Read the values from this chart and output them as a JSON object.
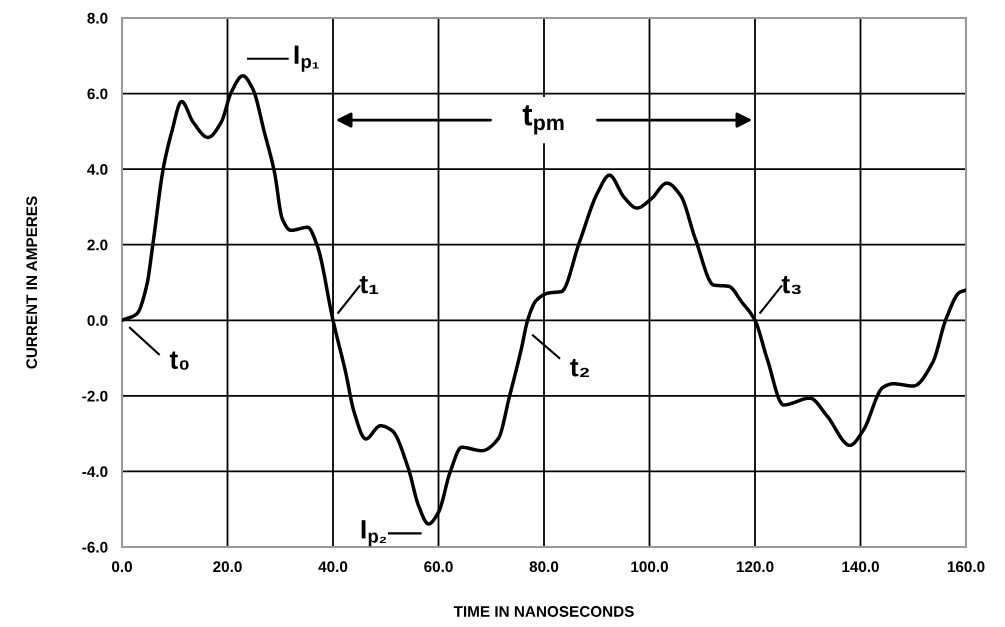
{
  "chart_data": {
    "type": "line",
    "xlabel": "TIME IN NANOSECONDS",
    "ylabel": "CURRENT IN AMPERES",
    "x": [
      0,
      2.8,
      4.7,
      5.9,
      7.8,
      9.4,
      11.3,
      13.5,
      16.3,
      18.8,
      20.7,
      22.9,
      24.8,
      27,
      28.9,
      30.4,
      32,
      35.2,
      37,
      40,
      42.4,
      44,
      46.2,
      49,
      51.2,
      54.3,
      56.2,
      58.1,
      60,
      62.2,
      64.4,
      68.2,
      71.3,
      73.5,
      75.7,
      76.9,
      78.5,
      80.8,
      83.3,
      86.7,
      90.2,
      92.4,
      95.2,
      97.6,
      100.3,
      103.3,
      105.9,
      108.7,
      112.2,
      115,
      117.5,
      120,
      122.3,
      125.4,
      130.4,
      133.6,
      138,
      140.5,
      144.3,
      146.2,
      150,
      153.7,
      156.2,
      158.8,
      160
    ],
    "series": [
      {
        "color": "#000000",
        "values": [
          0,
          0.17,
          0.93,
          2.06,
          4.0,
          4.97,
          5.79,
          5.24,
          4.84,
          5.24,
          6.03,
          6.47,
          6.12,
          4.97,
          3.92,
          2.68,
          2.38,
          2.46,
          1.98,
          0,
          -1.38,
          -2.43,
          -3.14,
          -2.79,
          -2.92,
          -3.93,
          -4.9,
          -5.39,
          -5.08,
          -4.02,
          -3.36,
          -3.45,
          -3.14,
          -1.99,
          -0.76,
          0,
          0.52,
          0.72,
          0.76,
          2.06,
          3.39,
          3.84,
          3.25,
          2.97,
          3.21,
          3.63,
          3.3,
          2.15,
          0.93,
          0.9,
          0.48,
          0,
          -1.02,
          -2.24,
          -2.06,
          -2.52,
          -3.31,
          -2.92,
          -1.77,
          -1.68,
          -1.74,
          -1.11,
          0.03,
          0.74,
          0.8
        ]
      }
    ],
    "xlim": [
      0,
      160
    ],
    "ylim": [
      -6,
      8
    ],
    "xticks": [
      {
        "value": 0,
        "label": "0.0"
      },
      {
        "value": 20,
        "label": "20.0"
      },
      {
        "value": 40,
        "label": "40.0"
      },
      {
        "value": 60,
        "label": "60.0"
      },
      {
        "value": 80,
        "label": "80.0"
      },
      {
        "value": 100,
        "label": "100.0"
      },
      {
        "value": 120,
        "label": "120.0"
      },
      {
        "value": 140,
        "label": "140.0"
      },
      {
        "value": 160,
        "label": "160.0"
      }
    ],
    "yticks": [
      {
        "value": -6,
        "label": "-6.0"
      },
      {
        "value": -4,
        "label": "-4.0"
      },
      {
        "value": -2,
        "label": "-2.0"
      },
      {
        "value": 0,
        "label": "0.0"
      },
      {
        "value": 2,
        "label": "2.0"
      },
      {
        "value": 4,
        "label": "4.0"
      },
      {
        "value": 6,
        "label": "6.0"
      },
      {
        "value": 8,
        "label": "8.0"
      }
    ],
    "grid": true,
    "marker": "none",
    "line_style": "solid",
    "annotations": [
      {
        "text": "t₀",
        "x": 0,
        "y": 0
      },
      {
        "text": "t₁",
        "x": 40,
        "y": 0
      },
      {
        "text": "t₂",
        "x": 76.9,
        "y": 0
      },
      {
        "text": "t₃",
        "x": 120,
        "y": 0
      },
      {
        "text": "I$_{p₁}$",
        "x": 22.9,
        "y": 6.47
      },
      {
        "text": "I$_{p₂}$",
        "x": 58.1,
        "y": -5.39
      },
      "t$_{pm}$"
    ]
  }
}
